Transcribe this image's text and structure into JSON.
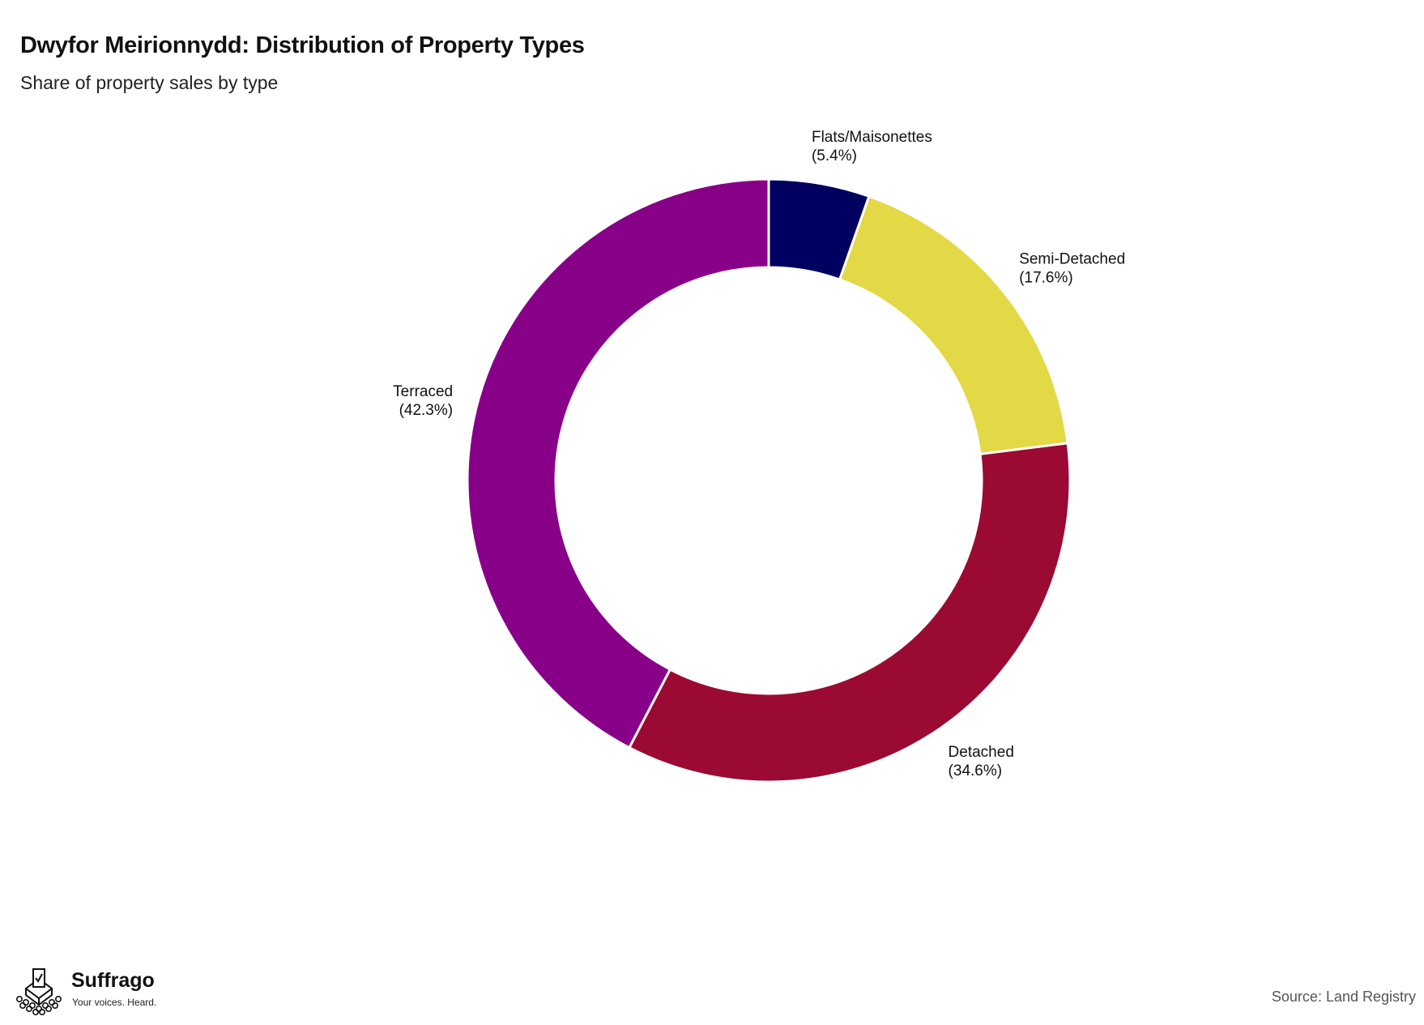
{
  "header": {
    "title": "Dwyfor Meirionnydd: Distribution of Property Types",
    "subtitle": "Share of property sales by type"
  },
  "chart_data": {
    "type": "pie",
    "style": "donut",
    "title": "Dwyfor Meirionnydd: Distribution of Property Types",
    "subtitle": "Share of property sales by type",
    "start": "12 o'clock",
    "direction": "clockwise",
    "slices": [
      {
        "label": "Flats/Maisonettes",
        "value": 5.4,
        "display": "(5.4%)",
        "color": "#000060"
      },
      {
        "label": "Semi-Detached",
        "value": 17.6,
        "display": "(17.6%)",
        "color": "#e3d846"
      },
      {
        "label": "Detached",
        "value": 34.6,
        "display": "(34.6%)",
        "color": "#9b0a32"
      },
      {
        "label": "Terraced",
        "value": 42.3,
        "display": "(42.3%)",
        "color": "#880088"
      }
    ],
    "legend": "none",
    "labels": "outside"
  },
  "footer": {
    "source": "Source: Land Registry",
    "brand_name": "Suffrago",
    "brand_tagline": "Your voices. Heard.",
    "brand_icon": "ballot-box-crowd-icon"
  }
}
